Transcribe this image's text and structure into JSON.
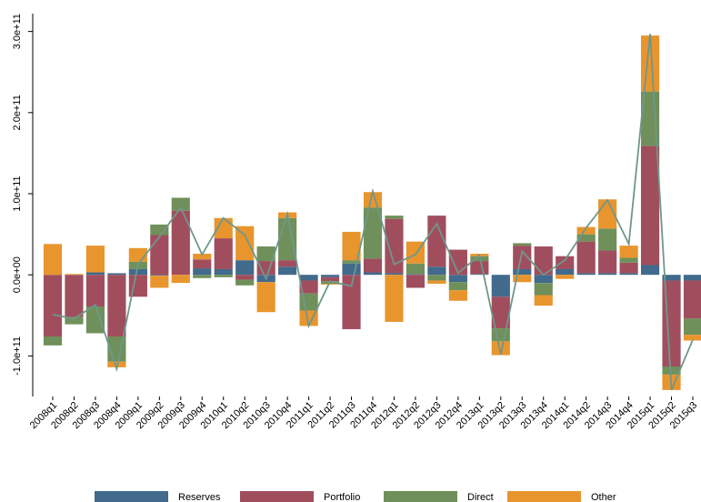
{
  "chart_data": {
    "type": "bar",
    "stacked": true,
    "categories": [
      "2008q1",
      "2008q2",
      "2008q3",
      "2008q4",
      "2009q1",
      "2009q2",
      "2009q3",
      "2009q4",
      "2010q1",
      "2010q2",
      "2010q3",
      "2010q4",
      "2011q1",
      "2011q2",
      "2011q3",
      "2011q4",
      "2012q1",
      "2012q2",
      "2012q3",
      "2012q4",
      "2013q1",
      "2013q2",
      "2013q3",
      "2013q4",
      "2014q1",
      "2014q2",
      "2014q3",
      "2014q4",
      "2015q1",
      "2015q2",
      "2015q3"
    ],
    "series": [
      {
        "name": "Reserves",
        "color": "#416a8c",
        "values": [
          0,
          0,
          3000000000.0,
          2000000000.0,
          7000000000.0,
          -1000000000.0,
          0,
          8000000000.0,
          7000000000.0,
          18000000000.0,
          -9000000000.0,
          10000000000.0,
          -7000000000.0,
          -3000000000.0,
          14000000000.0,
          3000000000.0,
          2000000000.0,
          1000000000.0,
          10000000000.0,
          -9000000000.0,
          1000000000.0,
          -27000000000.0,
          7000000000.0,
          -10000000000.0,
          7000000000.0,
          2000000000.0,
          2000000000.0,
          2000000000.0,
          12000000000.0,
          -7000000000.0,
          -7000000000.0
        ]
      },
      {
        "name": "Portfolio",
        "color": "#a04e5e",
        "values": [
          -76000000000.0,
          -52000000000.0,
          -39000000000.0,
          -76000000000.0,
          -27000000000.0,
          49000000000.0,
          79000000000.0,
          11000000000.0,
          38000000000.0,
          -6000000000.0,
          17000000000.0,
          8000000000.0,
          -16000000000.0,
          -5000000000.0,
          -67000000000.0,
          17000000000.0,
          67000000000.0,
          -16000000000.0,
          63000000000.0,
          31000000000.0,
          16000000000.0,
          -39000000000.0,
          29000000000.0,
          35000000000.0,
          16000000000.0,
          39000000000.0,
          28000000000.0,
          13000000000.0,
          147000000000.0,
          -106000000000.0,
          -47000000000.0
        ]
      },
      {
        "name": "Direct",
        "color": "#6f905a",
        "values": [
          -11000000000.0,
          -9000000000.0,
          -33000000000.0,
          -31000000000.0,
          9000000000.0,
          13000000000.0,
          16000000000.0,
          -4000000000.0,
          -3000000000.0,
          -7000000000.0,
          18000000000.0,
          52000000000.0,
          -21000000000.0,
          -3000000000.0,
          4000000000.0,
          63000000000.0,
          4000000000.0,
          13000000000.0,
          -7000000000.0,
          -10000000000.0,
          6000000000.0,
          -16000000000.0,
          3000000000.0,
          -15000000000.0,
          0,
          9000000000.0,
          27000000000.0,
          6000000000.0,
          67000000000.0,
          -10000000000.0,
          -20000000000.0
        ]
      },
      {
        "name": "Other",
        "color": "#e8952e",
        "values": [
          38000000000.0,
          1000000000.0,
          33000000000.0,
          -7000000000.0,
          17000000000.0,
          -15000000000.0,
          -10000000000.0,
          7000000000.0,
          25000000000.0,
          42000000000.0,
          -37000000000.0,
          7000000000.0,
          -19000000000.0,
          -1000000000.0,
          35000000000.0,
          19000000000.0,
          -58000000000.0,
          27000000000.0,
          -4000000000.0,
          -13000000000.0,
          3000000000.0,
          -17000000000.0,
          -9000000000.0,
          -13000000000.0,
          -5000000000.0,
          9000000000.0,
          36000000000.0,
          15000000000.0,
          69000000000.0,
          -19000000000.0,
          -7000000000.0
        ]
      }
    ],
    "line": {
      "color": "#6f978b",
      "values": [
        -49000000000.0,
        -54000000000.0,
        -37000000000.0,
        -116000000000.0,
        13000000000.0,
        47000000000.0,
        83000000000.0,
        25000000000.0,
        70000000000.0,
        49000000000.0,
        -5000000000.0,
        75000000000.0,
        -63000000000.0,
        -8000000000.0,
        -14000000000.0,
        103000000000.0,
        13000000000.0,
        25000000000.0,
        63000000000.0,
        2000000000.0,
        24000000000.0,
        -98000000000.0,
        29000000000.0,
        0,
        18000000000.0,
        58000000000.0,
        92000000000.0,
        38000000000.0,
        297000000000.0,
        -142000000000.0,
        -80000000000.0
      ]
    },
    "ylim": [
      -150000000000.0,
      322000000000.0
    ],
    "yticks": [
      {
        "value": -100000000000.0,
        "label": "-1.0e+11"
      },
      {
        "value": 0,
        "label": "0.0e+00"
      },
      {
        "value": 100000000000.0,
        "label": "1.0e+11"
      },
      {
        "value": 200000000000.0,
        "label": "2.0e+11"
      },
      {
        "value": 300000000000.0,
        "label": "3.0e+11"
      }
    ]
  }
}
